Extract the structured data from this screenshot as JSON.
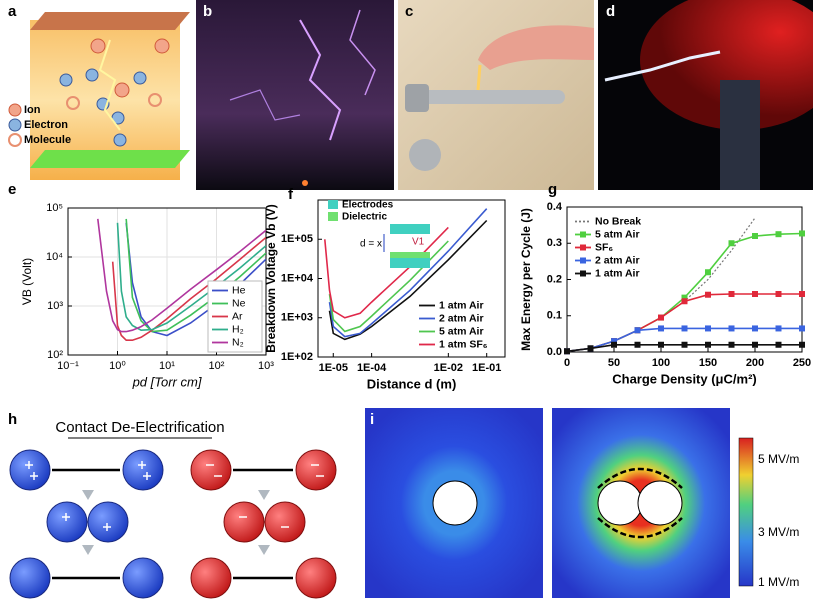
{
  "figure": {
    "panel_labels": [
      "a",
      "b",
      "c",
      "d",
      "e",
      "f",
      "g",
      "h",
      "i"
    ],
    "panel_a": {
      "legend": [
        "Ion",
        "Electron",
        "Molecule"
      ]
    },
    "panel_h": {
      "title": "Contact De-Electrification"
    },
    "panel_i": {
      "colorbar_labels": [
        "5 MV/m",
        "3 MV/m",
        "1 MV/m"
      ]
    }
  },
  "chart_data": [
    {
      "type": "line",
      "xscale": "log",
      "yscale": "log",
      "grid": true,
      "legend": "lower right",
      "x_label": "pd [Torr cm]",
      "y_label": "VB (Volt)",
      "x": [
        0.4,
        0.6,
        0.8,
        1,
        1.2,
        1.5,
        2,
        3,
        5,
        10,
        30,
        100,
        300,
        1000
      ],
      "xlim": [
        0.1,
        1000
      ],
      "xticks": [
        {
          "value": 0.1,
          "label": "10⁻¹"
        },
        {
          "value": 1,
          "label": "10⁰"
        },
        {
          "value": 10,
          "label": "10¹"
        },
        {
          "value": 100,
          "label": "10²"
        },
        {
          "value": 1000,
          "label": "10³"
        }
      ],
      "ylim": [
        100,
        100000
      ],
      "yticks": [
        {
          "value": 100,
          "label": "10²"
        },
        {
          "value": 1000,
          "label": "10³"
        },
        {
          "value": 10000,
          "label": "10⁴"
        },
        {
          "value": 100000,
          "label": "10⁵"
        }
      ],
      "series": [
        {
          "name": "He",
          "color": "#3b4fc8",
          "values": [
            null,
            null,
            null,
            null,
            null,
            50000,
            3000,
            600,
            300,
            250,
            450,
            1100,
            2800,
            9000
          ]
        },
        {
          "name": "Ne",
          "color": "#3fbf5a",
          "values": [
            null,
            null,
            null,
            null,
            null,
            60000,
            1500,
            500,
            300,
            320,
            650,
            1600,
            4000,
            12000
          ]
        },
        {
          "name": "Ar",
          "color": "#d8364a",
          "values": [
            null,
            null,
            8000,
            400,
            250,
            200,
            200,
            230,
            320,
            550,
            1400,
            3600,
            9000,
            25000
          ]
        },
        {
          "name": "H₂",
          "color": "#2fae8c",
          "values": [
            null,
            null,
            null,
            50000,
            2000,
            600,
            400,
            320,
            330,
            450,
            1000,
            2500,
            6000,
            17000
          ]
        },
        {
          "name": "N₂",
          "color": "#b0369e",
          "values": [
            60000,
            2000,
            500,
            330,
            300,
            300,
            320,
            380,
            520,
            900,
            2200,
            5500,
            13000,
            35000
          ]
        }
      ]
    },
    {
      "type": "line",
      "xscale": "log",
      "yscale": "log",
      "grid": false,
      "legend": "lower right",
      "x_label": "Distance d (m)",
      "y_label": "Breakdown Voltage Vb (V)",
      "annotations": [
        "Electrodes",
        "Dielectric",
        "d = x",
        "V1"
      ],
      "x": [
        6e-06,
        8e-06,
        1e-05,
        2e-05,
        5e-05,
        0.0001,
        0.001,
        0.01,
        0.1,
        0.3
      ],
      "xlim": [
        4e-06,
        0.3
      ],
      "xticks": [
        {
          "value": 1e-05,
          "label": "1E-05"
        },
        {
          "value": 0.0001,
          "label": "1E-04"
        },
        {
          "value": 0.01,
          "label": "1E-02"
        },
        {
          "value": 0.1,
          "label": "1E-01"
        }
      ],
      "ylim": [
        100,
        1000000
      ],
      "yticks": [
        {
          "value": 100,
          "label": "1E+02"
        },
        {
          "value": 1000,
          "label": "1E+03"
        },
        {
          "value": 10000,
          "label": "1E+04"
        },
        {
          "value": 100000,
          "label": "1E+05"
        }
      ],
      "series": [
        {
          "name": "1 atm Air",
          "color": "#111111",
          "values": [
            null,
            1500,
            400,
            280,
            380,
            600,
            3500,
            30000,
            300000,
            null
          ]
        },
        {
          "name": "2 atm Air",
          "color": "#3a5bd0",
          "values": [
            null,
            2500,
            600,
            330,
            400,
            700,
            5000,
            50000,
            600000,
            null
          ]
        },
        {
          "name": "5 atm Air",
          "color": "#4fc64f",
          "values": [
            null,
            4000,
            900,
            450,
            600,
            1100,
            9000,
            90000,
            null,
            null
          ]
        },
        {
          "name": "1 atm SF₆",
          "color": "#e0284a",
          "values": [
            100000,
            5000,
            1500,
            1000,
            1300,
            2500,
            20000,
            200000,
            null,
            null
          ]
        }
      ]
    },
    {
      "type": "line",
      "grid": false,
      "legend": "upper left",
      "x_label": "Charge Density (μC/m²)",
      "y_label": "Max Energy per Cycle (J)",
      "x": [
        0,
        25,
        50,
        75,
        100,
        125,
        150,
        175,
        200,
        225,
        250
      ],
      "xlim": [
        0,
        250
      ],
      "xticks": [
        0,
        50,
        100,
        150,
        200,
        250
      ],
      "ylim": [
        0,
        0.4
      ],
      "yticks": [
        {
          "value": 0,
          "label": "0.0"
        },
        0.1,
        0.2,
        0.3,
        0.4
      ],
      "series": [
        {
          "name": "No Break",
          "color": "#777777",
          "style": "dotted",
          "values": [
            0.002,
            0.01,
            0.03,
            0.06,
            0.095,
            0.14,
            0.2,
            0.28,
            0.37,
            null,
            null
          ]
        },
        {
          "name": "5 atm Air",
          "color": "#4fcf3f",
          "marker": "square",
          "values": [
            0.002,
            0.01,
            0.03,
            0.06,
            0.095,
            0.15,
            0.22,
            0.3,
            0.32,
            0.325,
            0.327
          ]
        },
        {
          "name": "SF₆",
          "color": "#e0283a",
          "marker": "square",
          "values": [
            0.002,
            0.01,
            0.03,
            0.06,
            0.095,
            0.14,
            0.158,
            0.16,
            0.16,
            0.16,
            0.16
          ]
        },
        {
          "name": "2 atm Air",
          "color": "#3a64e0",
          "marker": "square",
          "values": [
            0.002,
            0.01,
            0.03,
            0.06,
            0.065,
            0.065,
            0.065,
            0.065,
            0.065,
            0.065,
            0.065
          ]
        },
        {
          "name": "1 atm Air",
          "color": "#111111",
          "marker": "square",
          "values": [
            0.002,
            0.01,
            0.02,
            0.02,
            0.02,
            0.02,
            0.02,
            0.02,
            0.02,
            0.02,
            0.02
          ]
        }
      ]
    }
  ]
}
